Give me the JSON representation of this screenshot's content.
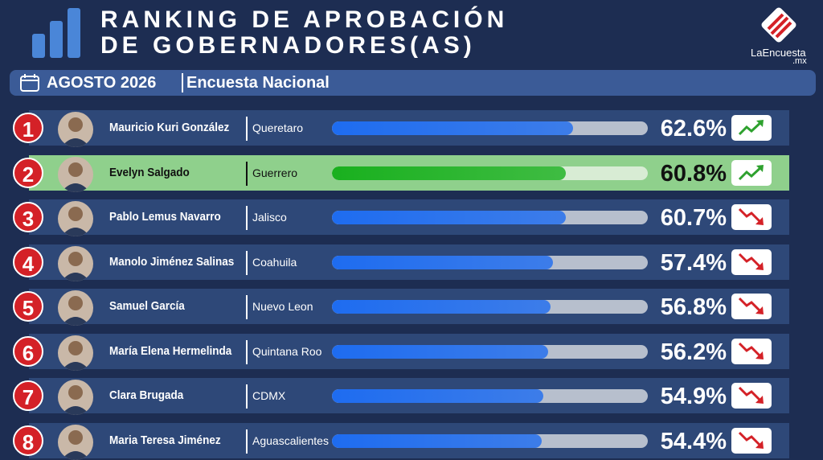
{
  "logo": {
    "name": "LaEncuesta",
    "tld": ".mx"
  },
  "chart_data": {
    "type": "bar",
    "title": [
      "RANKING DE APROBACIÓN",
      "DE GOBERNADORES(AS)"
    ],
    "date": "AGOSTO 2026",
    "subtitle": "Encuesta Nacional",
    "ranks": [
      1,
      2,
      3,
      4,
      5,
      6,
      7,
      8
    ],
    "categories": [
      "Mauricio Kuri González",
      "Evelyn Salgado",
      "Pablo Lemus Navarro",
      "Manolo Jiménez Salinas",
      "Samuel García",
      "María Elena Hermelinda",
      "Clara Brugada",
      "Maria Teresa Jiménez"
    ],
    "states": [
      "Queretaro",
      "Guerrero",
      "Jalisco",
      "Coahuila",
      "Nuevo Leon",
      "Quintana Roo",
      "CDMX",
      "Aguascalientes"
    ],
    "values": [
      62.6,
      60.8,
      60.7,
      57.4,
      56.8,
      56.2,
      54.9,
      54.4
    ],
    "value_labels": [
      "62.6%",
      "60.8%",
      "60.7%",
      "57.4%",
      "56.8%",
      "56.2%",
      "54.9%",
      "54.4%"
    ],
    "trend": [
      "up",
      "up",
      "down",
      "down",
      "down",
      "down",
      "down",
      "down"
    ],
    "highlight": 1,
    "xlim": [
      0,
      82
    ],
    "color": "#1e6cf0",
    "highlight_color": "#19b01e"
  }
}
